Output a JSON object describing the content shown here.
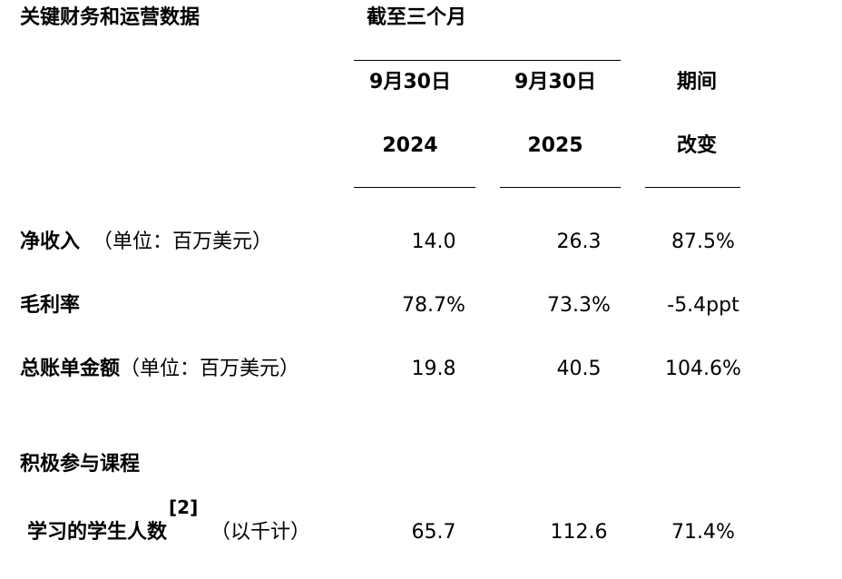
{
  "header": {
    "title": "关键财务和运营数据",
    "period": "截至三个月",
    "columns": [
      [
        "9月30日",
        "2024"
      ],
      [
        "9月30日",
        "2025"
      ],
      [
        "期间",
        "改变"
      ]
    ]
  },
  "table": {
    "rows": [
      {
        "label": "净收入",
        "unit": "（单位：百万美元）",
        "values": [
          "14.0",
          "26.3",
          "87.5%"
        ]
      },
      {
        "label": "毛利率",
        "values": [
          "78.7%",
          "73.3%",
          "-5.4ppt"
        ]
      },
      {
        "label": "总账单金额",
        "unit": "（单位：百万美元）",
        "values": [
          "19.8",
          "40.5",
          "104.6%"
        ]
      }
    ]
  },
  "section": {
    "title": "积极参与课程",
    "rows": [
      {
        "label": "学习的学生人数",
        "note": "[2]",
        "unit": "（以千计）",
        "values": [
          "65.7",
          "112.6",
          "71.4%"
        ]
      }
    ]
  }
}
